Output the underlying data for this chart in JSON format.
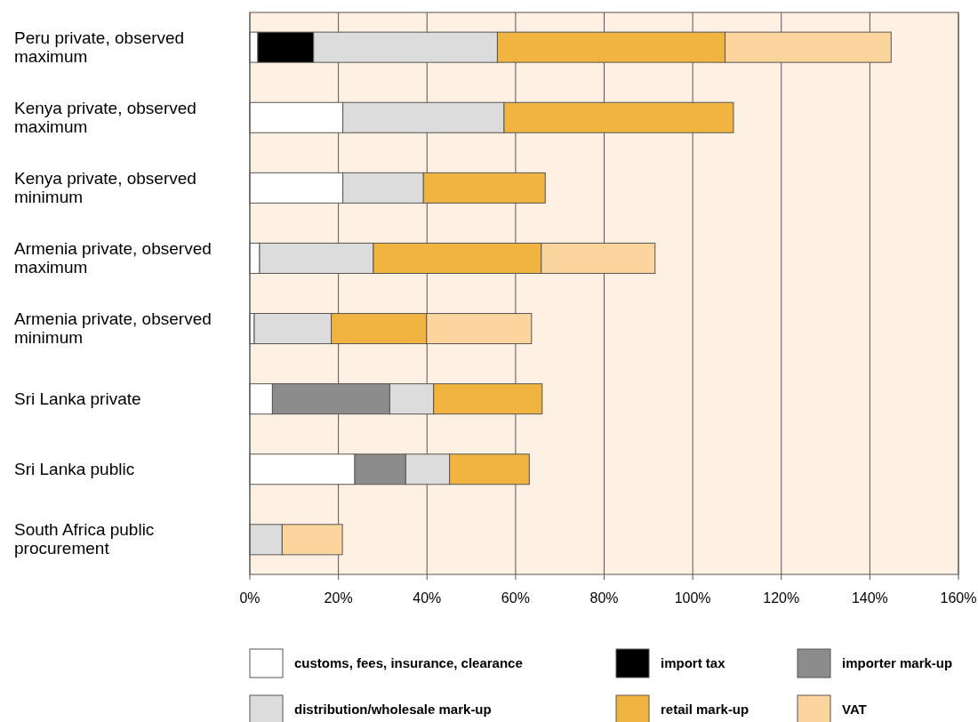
{
  "chart_data": {
    "type": "bar",
    "orientation": "horizontal",
    "stacked": true,
    "categories": [
      "Peru private, observed maximum",
      "Kenya private, observed maximum",
      "Kenya private, observed minimum",
      "Armenia private, observed maximum",
      "Armenia private, observed minimum",
      "Sri Lanka private",
      "Sri Lanka public",
      "South Africa public procurement"
    ],
    "series": [
      {
        "name": "customs, fees, insurance, clearance",
        "color": "#ffffff",
        "values": [
          1.8,
          21,
          21,
          2.2,
          1,
          5.1,
          23.7,
          null
        ]
      },
      {
        "name": "import tax",
        "color": "#000000",
        "values": [
          12.6,
          null,
          null,
          null,
          null,
          null,
          null,
          null
        ]
      },
      {
        "name": "importer mark-up",
        "color": "#8c8c8c",
        "values": [
          null,
          null,
          null,
          null,
          null,
          26.5,
          11.5,
          null
        ]
      },
      {
        "name": "distribution/wholesale mark-up",
        "color": "#dcdcdc",
        "values": [
          41.5,
          36.4,
          18.2,
          25.7,
          17.4,
          9.9,
          9.9,
          7.3
        ]
      },
      {
        "name": "retail mark-up",
        "color": "#f2b440",
        "values": [
          51.4,
          51.8,
          27.5,
          37.9,
          21.5,
          24.5,
          18,
          null
        ]
      },
      {
        "name": "VAT",
        "color": "#fbd59d",
        "values": [
          37.5,
          null,
          null,
          25.7,
          23.7,
          null,
          null,
          13.6
        ]
      }
    ],
    "xlim": [
      0,
      160
    ],
    "xticks": [
      {
        "value": 0,
        "label": "0%"
      },
      {
        "value": 20,
        "label": "20%"
      },
      {
        "value": 40,
        "label": "40%"
      },
      {
        "value": 60,
        "label": "60%"
      },
      {
        "value": 80,
        "label": "80%"
      },
      {
        "value": 100,
        "label": "100%"
      },
      {
        "value": 120,
        "label": "120%"
      },
      {
        "value": 140,
        "label": "140%"
      },
      {
        "value": 160,
        "label": "160%"
      }
    ],
    "grid": "x",
    "legend": "bottom"
  }
}
